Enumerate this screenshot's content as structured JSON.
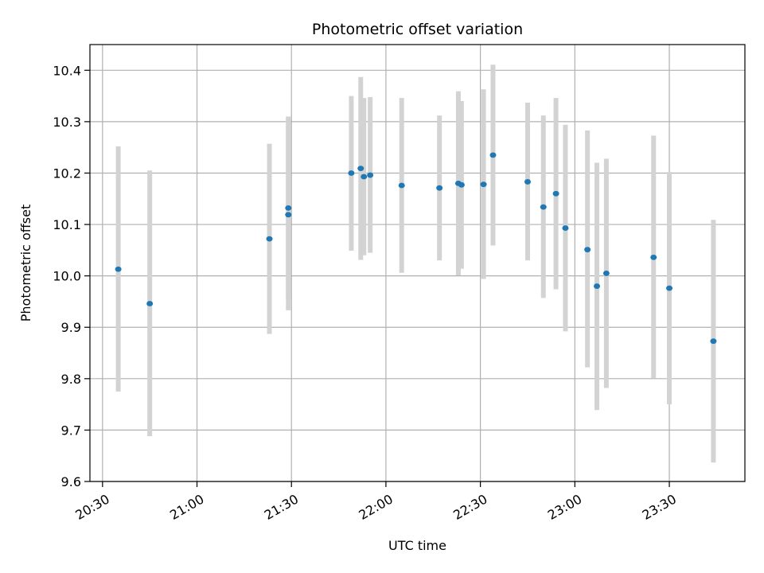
{
  "chart_data": {
    "type": "scatter",
    "title": "Photometric offset variation",
    "xlabel": "UTC time",
    "ylabel": "Photometric offset",
    "x_ticks": [
      "20:30",
      "21:00",
      "21:30",
      "22:00",
      "22:30",
      "23:00",
      "23:30"
    ],
    "x_tick_values_min": [
      1230,
      1260,
      1290,
      1320,
      1350,
      1380,
      1410
    ],
    "xlim_min": [
      1226,
      1434
    ],
    "ylim": [
      9.6,
      10.45
    ],
    "y_ticks": [
      "9.6",
      "9.7",
      "9.8",
      "9.9",
      "10.0",
      "10.1",
      "10.2",
      "10.3",
      "10.4"
    ],
    "y_tick_values": [
      9.6,
      9.7,
      9.8,
      9.9,
      10.0,
      10.1,
      10.2,
      10.3,
      10.4
    ],
    "grid": true,
    "errorbar_color": "#d3d3d3",
    "point_color": "#1f77b4",
    "points": [
      {
        "time": "20:35",
        "y": 10.013,
        "lo": 9.775,
        "hi": 10.252
      },
      {
        "time": "20:45",
        "y": 9.946,
        "lo": 9.688,
        "hi": 10.205
      },
      {
        "time": "21:23",
        "y": 10.072,
        "lo": 9.887,
        "hi": 10.257
      },
      {
        "time": "21:29",
        "y": 10.119,
        "lo": 9.933,
        "hi": 10.305
      },
      {
        "time": "21:29",
        "y": 10.132,
        "lo": 9.955,
        "hi": 10.31
      },
      {
        "time": "21:49",
        "y": 10.2,
        "lo": 10.049,
        "hi": 10.35
      },
      {
        "time": "21:52",
        "y": 10.209,
        "lo": 10.031,
        "hi": 10.387
      },
      {
        "time": "21:53",
        "y": 10.193,
        "lo": 10.04,
        "hi": 10.346
      },
      {
        "time": "21:55",
        "y": 10.196,
        "lo": 10.045,
        "hi": 10.348
      },
      {
        "time": "22:05",
        "y": 10.176,
        "lo": 10.006,
        "hi": 10.346
      },
      {
        "time": "22:17",
        "y": 10.171,
        "lo": 10.03,
        "hi": 10.312
      },
      {
        "time": "22:23",
        "y": 10.18,
        "lo": 10.001,
        "hi": 10.359
      },
      {
        "time": "22:24",
        "y": 10.177,
        "lo": 10.014,
        "hi": 10.34
      },
      {
        "time": "22:31",
        "y": 10.178,
        "lo": 9.994,
        "hi": 10.363
      },
      {
        "time": "22:34",
        "y": 10.235,
        "lo": 10.059,
        "hi": 10.411
      },
      {
        "time": "22:45",
        "y": 10.183,
        "lo": 10.03,
        "hi": 10.337
      },
      {
        "time": "22:50",
        "y": 10.134,
        "lo": 9.957,
        "hi": 10.312
      },
      {
        "time": "22:54",
        "y": 10.16,
        "lo": 9.974,
        "hi": 10.346
      },
      {
        "time": "22:57",
        "y": 10.093,
        "lo": 9.892,
        "hi": 10.294
      },
      {
        "time": "23:04",
        "y": 10.051,
        "lo": 9.822,
        "hi": 10.283
      },
      {
        "time": "23:07",
        "y": 9.98,
        "lo": 9.739,
        "hi": 10.22
      },
      {
        "time": "23:10",
        "y": 10.005,
        "lo": 9.782,
        "hi": 10.228
      },
      {
        "time": "23:25",
        "y": 10.036,
        "lo": 9.801,
        "hi": 10.273
      },
      {
        "time": "23:30",
        "y": 9.976,
        "lo": 9.75,
        "hi": 10.202
      },
      {
        "time": "23:44",
        "y": 9.873,
        "lo": 9.637,
        "hi": 10.109
      }
    ]
  }
}
